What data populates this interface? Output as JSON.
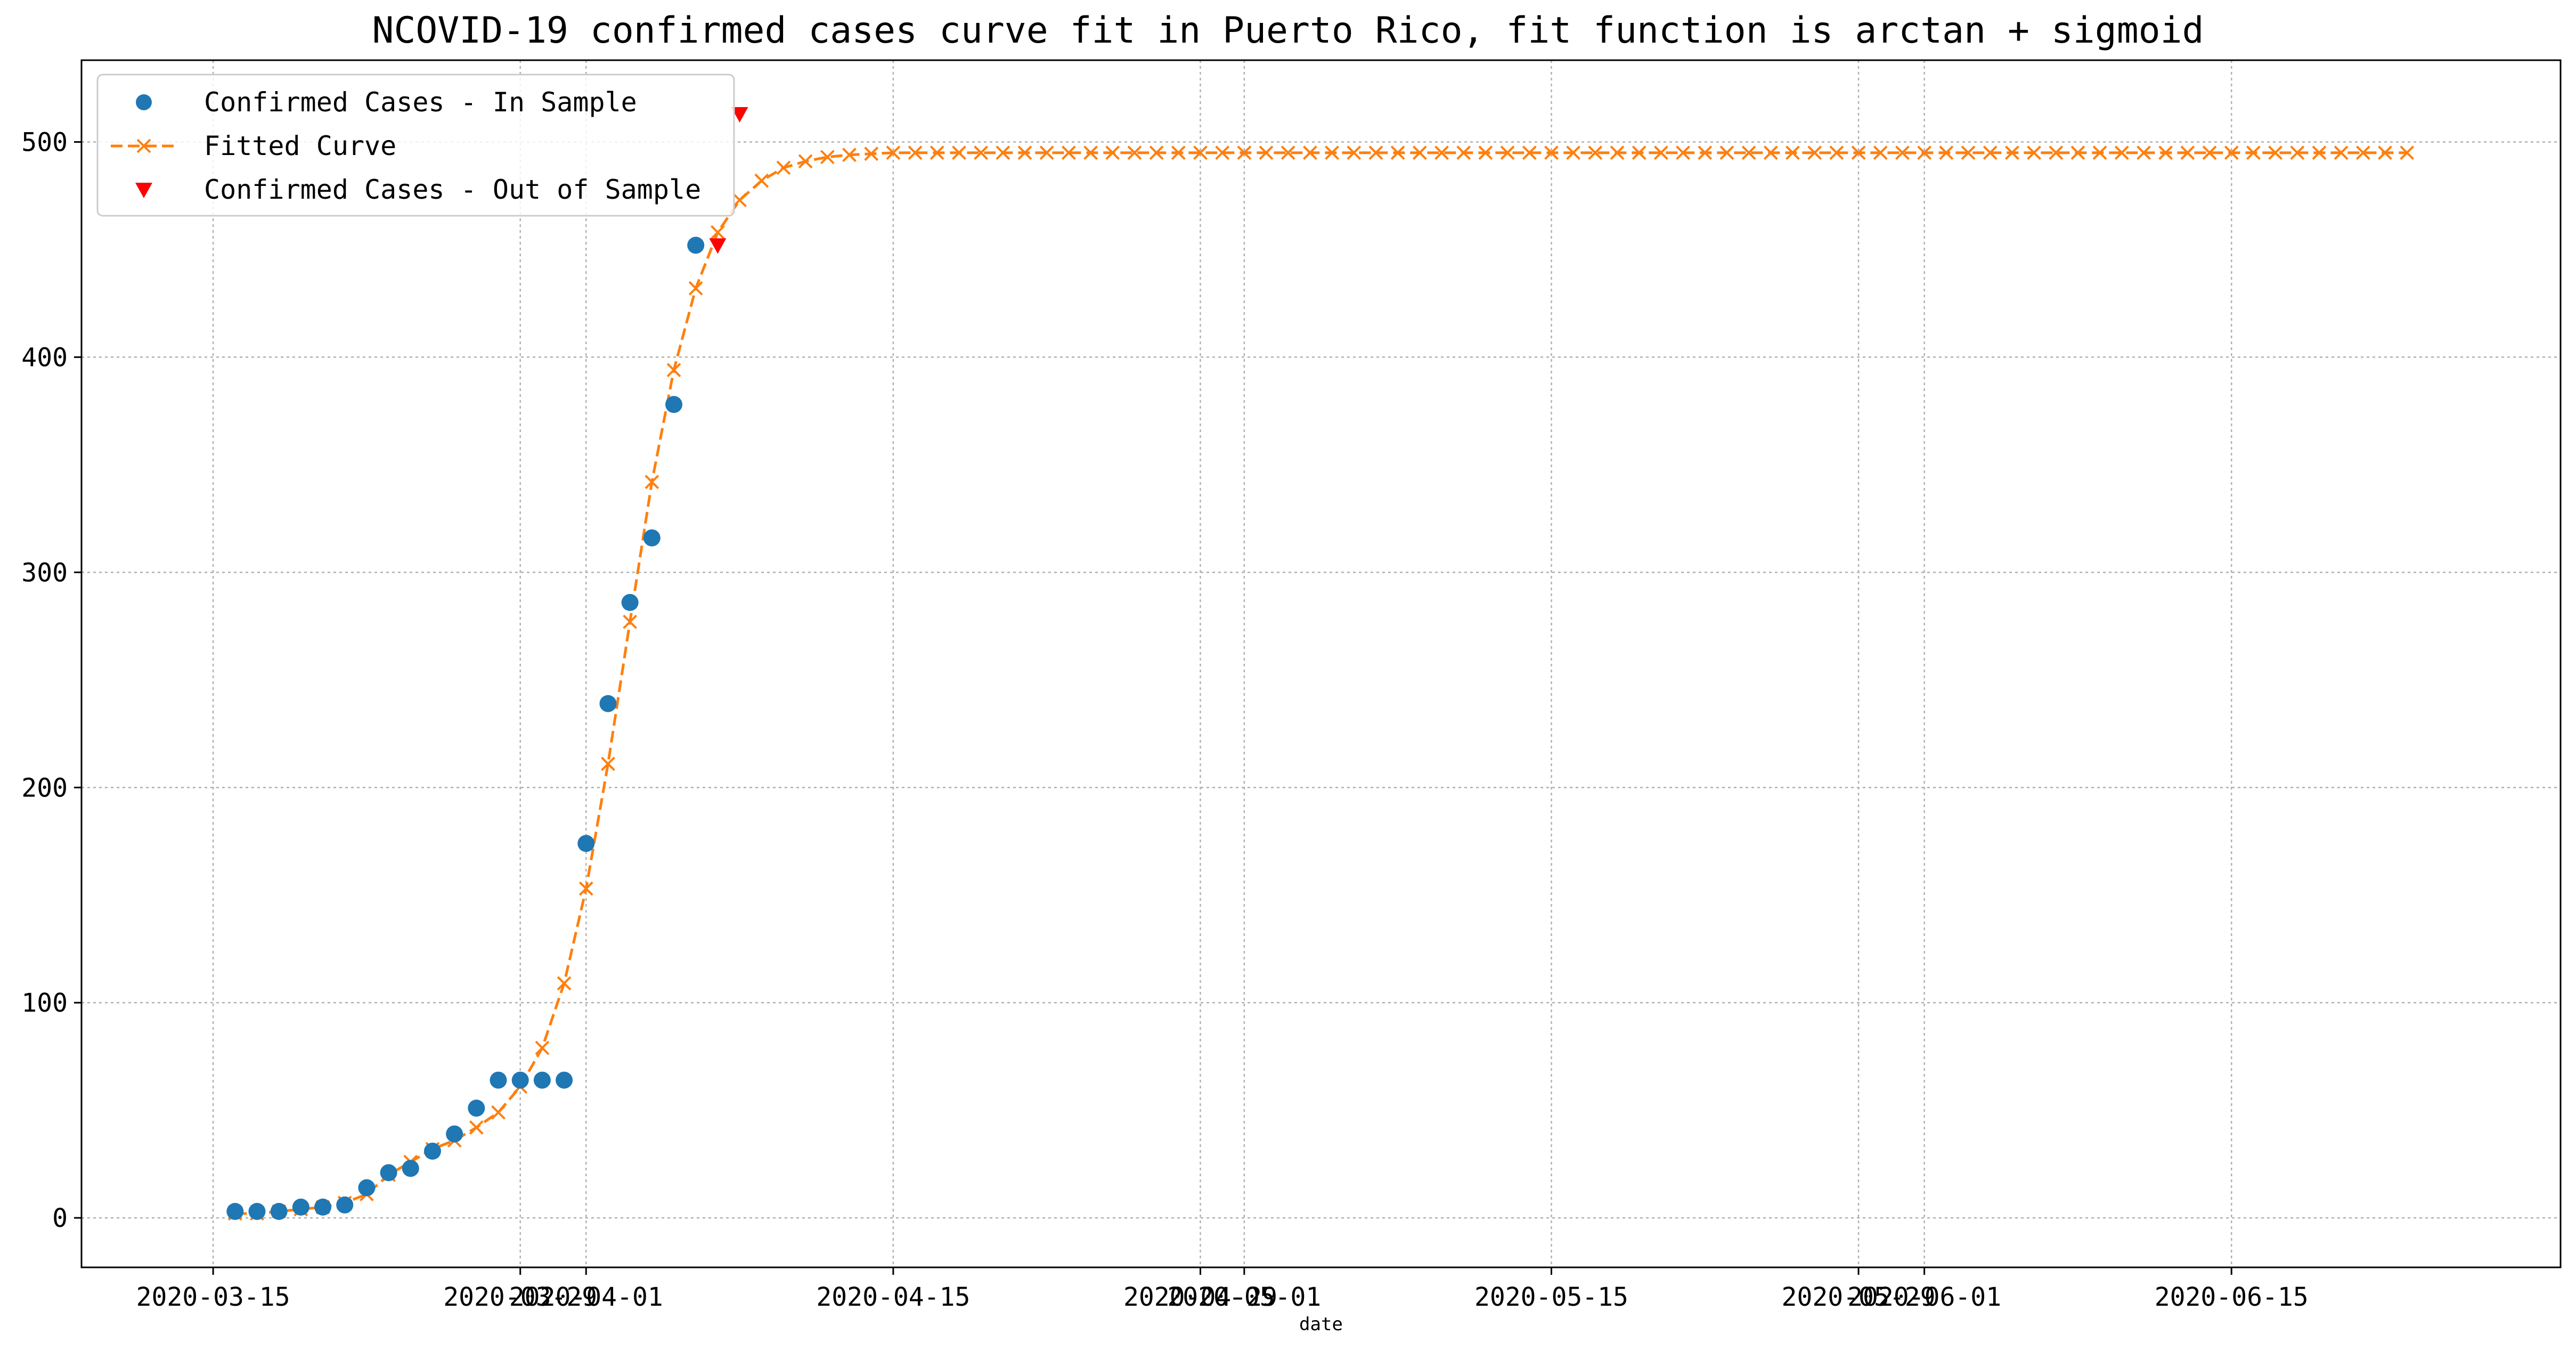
{
  "chart_data": {
    "type": "line",
    "title": "NCOVID-19 confirmed cases curve fit in Puerto Rico, fit function is arctan + sigmoid",
    "xlabel": "date",
    "ylabel": "",
    "x_axis": {
      "type": "date",
      "range": [
        "2020-03-09",
        "2020-06-30"
      ],
      "ticks": [
        {
          "date": "2020-03-15",
          "label": "2020-03-15"
        },
        {
          "date": "2020-03-29",
          "label": "2020-03-29"
        },
        {
          "date": "2020-04-01",
          "label": "2020-04-01"
        },
        {
          "date": "2020-04-15",
          "label": "2020-04-15"
        },
        {
          "date": "2020-04-29",
          "label": "2020-04-29"
        },
        {
          "date": "2020-05-01",
          "label": "2020-05-01"
        },
        {
          "date": "2020-05-15",
          "label": "2020-05-15"
        },
        {
          "date": "2020-05-29",
          "label": "2020-05-29"
        },
        {
          "date": "2020-06-01",
          "label": "2020-06-01"
        },
        {
          "date": "2020-06-15",
          "label": "2020-06-15"
        }
      ]
    },
    "y_axis": {
      "range": [
        -23,
        538
      ],
      "ticks": [
        0,
        100,
        200,
        300,
        400,
        500
      ]
    },
    "grid": true,
    "legend_position": "upper-left",
    "series": [
      {
        "name": "Confirmed Cases - In Sample",
        "marker": "circle",
        "color": "#1f77b4",
        "points": [
          [
            "2020-03-16",
            3
          ],
          [
            "2020-03-17",
            3
          ],
          [
            "2020-03-18",
            3
          ],
          [
            "2020-03-19",
            5
          ],
          [
            "2020-03-20",
            5
          ],
          [
            "2020-03-21",
            6
          ],
          [
            "2020-03-22",
            14
          ],
          [
            "2020-03-23",
            21
          ],
          [
            "2020-03-24",
            23
          ],
          [
            "2020-03-25",
            31
          ],
          [
            "2020-03-26",
            39
          ],
          [
            "2020-03-27",
            51
          ],
          [
            "2020-03-28",
            64
          ],
          [
            "2020-03-29",
            64
          ],
          [
            "2020-03-30",
            64
          ],
          [
            "2020-03-31",
            64
          ],
          [
            "2020-04-01",
            174
          ],
          [
            "2020-04-02",
            239
          ],
          [
            "2020-04-03",
            286
          ],
          [
            "2020-04-04",
            316
          ],
          [
            "2020-04-05",
            378
          ],
          [
            "2020-04-06",
            452
          ]
        ]
      },
      {
        "name": "Fitted Curve",
        "marker": "x",
        "line_style": "dashed",
        "color": "#ff7f0e",
        "model": "arctan + sigmoid",
        "start": "2020-03-16",
        "end": "2020-06-23",
        "values_first_days": [
          2,
          2,
          3,
          4,
          5,
          7,
          11,
          20,
          26,
          32,
          36,
          42,
          49,
          61,
          79,
          109,
          153,
          211,
          277,
          342,
          394,
          432,
          458,
          473,
          482,
          488,
          491,
          493,
          494,
          494.5
        ],
        "plateau": 495
      },
      {
        "name": "Confirmed Cases - Out of Sample",
        "marker": "triangle-down",
        "color": "#ff0000",
        "points": [
          [
            "2020-04-07",
            452
          ],
          [
            "2020-04-08",
            513
          ]
        ]
      }
    ]
  }
}
